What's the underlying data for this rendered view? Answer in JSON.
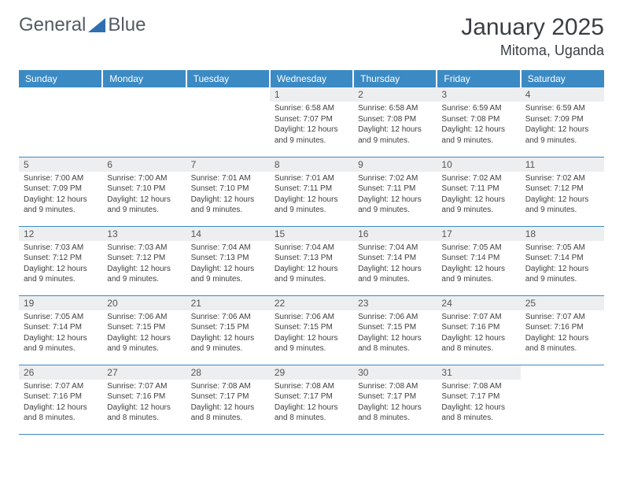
{
  "logo": {
    "text1": "General",
    "text2": "Blue"
  },
  "title": "January 2025",
  "location": "Mitoma, Uganda",
  "colors": {
    "header_bg": "#3b8ac4",
    "header_fg": "#ffffff",
    "daynum_bg": "#edeef0",
    "rule": "#3b8ac4",
    "logo_tri": "#2f6fb0",
    "text": "#404040"
  },
  "weekdays": [
    "Sunday",
    "Monday",
    "Tuesday",
    "Wednesday",
    "Thursday",
    "Friday",
    "Saturday"
  ],
  "weeks": [
    [
      {
        "n": "",
        "sr": "",
        "ss": "",
        "dl": ""
      },
      {
        "n": "",
        "sr": "",
        "ss": "",
        "dl": ""
      },
      {
        "n": "",
        "sr": "",
        "ss": "",
        "dl": ""
      },
      {
        "n": "1",
        "sr": "Sunrise: 6:58 AM",
        "ss": "Sunset: 7:07 PM",
        "dl": "Daylight: 12 hours and 9 minutes."
      },
      {
        "n": "2",
        "sr": "Sunrise: 6:58 AM",
        "ss": "Sunset: 7:08 PM",
        "dl": "Daylight: 12 hours and 9 minutes."
      },
      {
        "n": "3",
        "sr": "Sunrise: 6:59 AM",
        "ss": "Sunset: 7:08 PM",
        "dl": "Daylight: 12 hours and 9 minutes."
      },
      {
        "n": "4",
        "sr": "Sunrise: 6:59 AM",
        "ss": "Sunset: 7:09 PM",
        "dl": "Daylight: 12 hours and 9 minutes."
      }
    ],
    [
      {
        "n": "5",
        "sr": "Sunrise: 7:00 AM",
        "ss": "Sunset: 7:09 PM",
        "dl": "Daylight: 12 hours and 9 minutes."
      },
      {
        "n": "6",
        "sr": "Sunrise: 7:00 AM",
        "ss": "Sunset: 7:10 PM",
        "dl": "Daylight: 12 hours and 9 minutes."
      },
      {
        "n": "7",
        "sr": "Sunrise: 7:01 AM",
        "ss": "Sunset: 7:10 PM",
        "dl": "Daylight: 12 hours and 9 minutes."
      },
      {
        "n": "8",
        "sr": "Sunrise: 7:01 AM",
        "ss": "Sunset: 7:11 PM",
        "dl": "Daylight: 12 hours and 9 minutes."
      },
      {
        "n": "9",
        "sr": "Sunrise: 7:02 AM",
        "ss": "Sunset: 7:11 PM",
        "dl": "Daylight: 12 hours and 9 minutes."
      },
      {
        "n": "10",
        "sr": "Sunrise: 7:02 AM",
        "ss": "Sunset: 7:11 PM",
        "dl": "Daylight: 12 hours and 9 minutes."
      },
      {
        "n": "11",
        "sr": "Sunrise: 7:02 AM",
        "ss": "Sunset: 7:12 PM",
        "dl": "Daylight: 12 hours and 9 minutes."
      }
    ],
    [
      {
        "n": "12",
        "sr": "Sunrise: 7:03 AM",
        "ss": "Sunset: 7:12 PM",
        "dl": "Daylight: 12 hours and 9 minutes."
      },
      {
        "n": "13",
        "sr": "Sunrise: 7:03 AM",
        "ss": "Sunset: 7:12 PM",
        "dl": "Daylight: 12 hours and 9 minutes."
      },
      {
        "n": "14",
        "sr": "Sunrise: 7:04 AM",
        "ss": "Sunset: 7:13 PM",
        "dl": "Daylight: 12 hours and 9 minutes."
      },
      {
        "n": "15",
        "sr": "Sunrise: 7:04 AM",
        "ss": "Sunset: 7:13 PM",
        "dl": "Daylight: 12 hours and 9 minutes."
      },
      {
        "n": "16",
        "sr": "Sunrise: 7:04 AM",
        "ss": "Sunset: 7:14 PM",
        "dl": "Daylight: 12 hours and 9 minutes."
      },
      {
        "n": "17",
        "sr": "Sunrise: 7:05 AM",
        "ss": "Sunset: 7:14 PM",
        "dl": "Daylight: 12 hours and 9 minutes."
      },
      {
        "n": "18",
        "sr": "Sunrise: 7:05 AM",
        "ss": "Sunset: 7:14 PM",
        "dl": "Daylight: 12 hours and 9 minutes."
      }
    ],
    [
      {
        "n": "19",
        "sr": "Sunrise: 7:05 AM",
        "ss": "Sunset: 7:14 PM",
        "dl": "Daylight: 12 hours and 9 minutes."
      },
      {
        "n": "20",
        "sr": "Sunrise: 7:06 AM",
        "ss": "Sunset: 7:15 PM",
        "dl": "Daylight: 12 hours and 9 minutes."
      },
      {
        "n": "21",
        "sr": "Sunrise: 7:06 AM",
        "ss": "Sunset: 7:15 PM",
        "dl": "Daylight: 12 hours and 9 minutes."
      },
      {
        "n": "22",
        "sr": "Sunrise: 7:06 AM",
        "ss": "Sunset: 7:15 PM",
        "dl": "Daylight: 12 hours and 9 minutes."
      },
      {
        "n": "23",
        "sr": "Sunrise: 7:06 AM",
        "ss": "Sunset: 7:15 PM",
        "dl": "Daylight: 12 hours and 8 minutes."
      },
      {
        "n": "24",
        "sr": "Sunrise: 7:07 AM",
        "ss": "Sunset: 7:16 PM",
        "dl": "Daylight: 12 hours and 8 minutes."
      },
      {
        "n": "25",
        "sr": "Sunrise: 7:07 AM",
        "ss": "Sunset: 7:16 PM",
        "dl": "Daylight: 12 hours and 8 minutes."
      }
    ],
    [
      {
        "n": "26",
        "sr": "Sunrise: 7:07 AM",
        "ss": "Sunset: 7:16 PM",
        "dl": "Daylight: 12 hours and 8 minutes."
      },
      {
        "n": "27",
        "sr": "Sunrise: 7:07 AM",
        "ss": "Sunset: 7:16 PM",
        "dl": "Daylight: 12 hours and 8 minutes."
      },
      {
        "n": "28",
        "sr": "Sunrise: 7:08 AM",
        "ss": "Sunset: 7:17 PM",
        "dl": "Daylight: 12 hours and 8 minutes."
      },
      {
        "n": "29",
        "sr": "Sunrise: 7:08 AM",
        "ss": "Sunset: 7:17 PM",
        "dl": "Daylight: 12 hours and 8 minutes."
      },
      {
        "n": "30",
        "sr": "Sunrise: 7:08 AM",
        "ss": "Sunset: 7:17 PM",
        "dl": "Daylight: 12 hours and 8 minutes."
      },
      {
        "n": "31",
        "sr": "Sunrise: 7:08 AM",
        "ss": "Sunset: 7:17 PM",
        "dl": "Daylight: 12 hours and 8 minutes."
      },
      {
        "n": "",
        "sr": "",
        "ss": "",
        "dl": ""
      }
    ]
  ]
}
